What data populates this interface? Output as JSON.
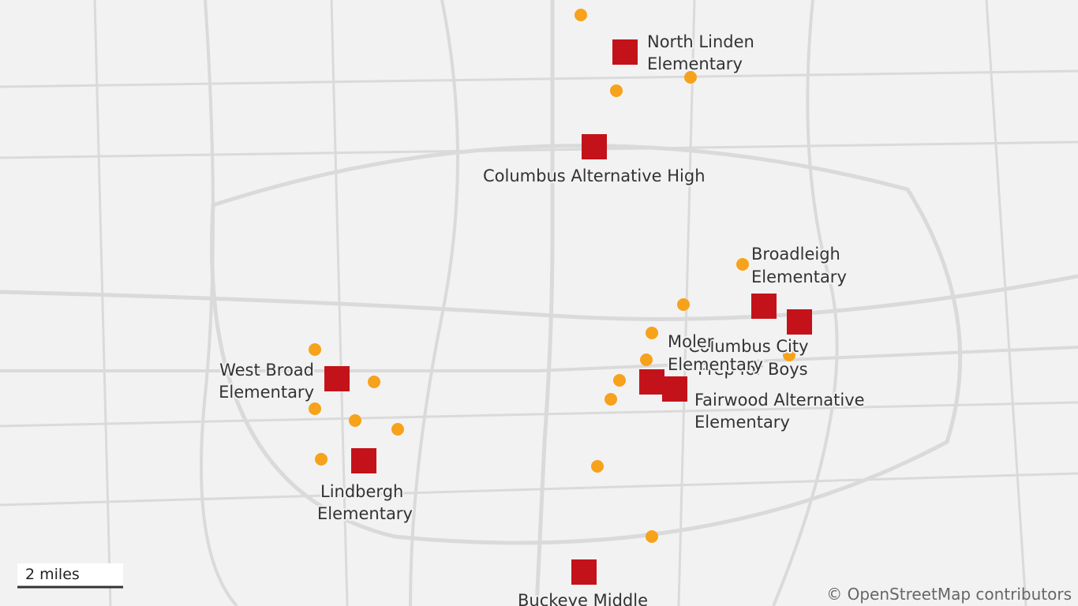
{
  "labels": [
    {
      "lines": [
        "North Linden",
        "Elementary"
      ]
    },
    {
      "lines": [
        "Columbus Alternative High"
      ]
    },
    {
      "lines": [
        "Broadleigh",
        "Elementary"
      ]
    },
    {
      "lines": [
        "Columbus City",
        "Prep for Boys"
      ]
    },
    {
      "lines": [
        "Moler",
        "Elementary"
      ]
    },
    {
      "lines": [
        "West Broad",
        "Elementary"
      ]
    },
    {
      "lines": [
        "Fairwood Alternative",
        "Elementary"
      ]
    },
    {
      "lines": [
        "Lindbergh",
        "Elementary"
      ]
    },
    {
      "lines": [
        "Buckeye Middle"
      ]
    }
  ],
  "scale": {
    "label": "2 miles"
  },
  "attribution": "© OpenStreetMap contributors"
}
